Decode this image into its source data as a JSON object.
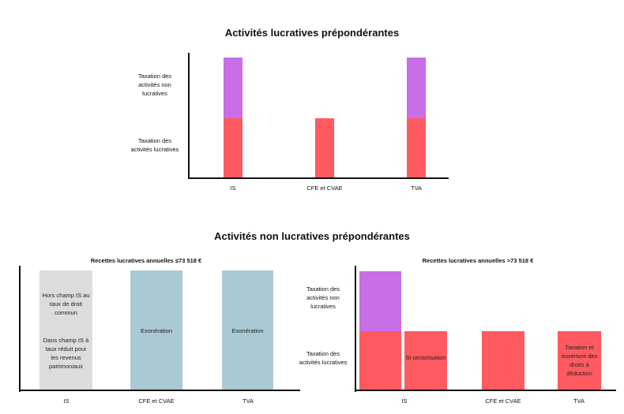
{
  "chart_data": [
    {
      "type": "bar",
      "stacked": true,
      "title": "Activités lucratives prépondérantes",
      "y_categories": [
        "Taxation des activités lucratives",
        "Taxation des activités non lucratives"
      ],
      "categories": [
        "IS",
        "CFE et CVAE",
        "TVA"
      ],
      "series": [
        {
          "name": "Taxation des activités lucratives",
          "color": "#ff5a5f",
          "values": [
            1,
            1,
            1
          ]
        },
        {
          "name": "Taxation des activités non lucratives",
          "color": "#c86ee6",
          "values": [
            1,
            0,
            1
          ]
        }
      ]
    },
    {
      "type": "bar",
      "title": "Activités non lucratives prépondérantes",
      "subtitle": "Recettes lucratives annuelles ≤73 518 €",
      "categories": [
        "IS",
        "CFE et CVAE",
        "TVA"
      ],
      "bars": [
        {
          "category": "IS",
          "color": "#dcdcdc",
          "label_top": "Hors champ IS au taux de droit commun",
          "label_bottom": "Dans champ IS à taux réduit pour les revenus patrimoniaux"
        },
        {
          "category": "CFE et CVAE",
          "color": "#a9c9d4",
          "label": "Exonération"
        },
        {
          "category": "TVA",
          "color": "#a9c9d4",
          "label": "Exonération"
        }
      ]
    },
    {
      "type": "bar",
      "stacked": true,
      "subtitle": "Recettes lucratives annuelles >73 518 €",
      "y_categories": [
        "Taxation des activités lucratives",
        "Taxation des activités non lucratives"
      ],
      "categories": [
        "IS",
        "CFE et CVAE",
        "TVA"
      ],
      "bars": [
        {
          "category": "IS",
          "segments": [
            {
              "color": "#ff5a5f",
              "value": 1
            },
            {
              "color": "#c86ee6",
              "value": 1
            }
          ]
        },
        {
          "category": "IS",
          "segments": [
            {
              "color": "#ff5a5f",
              "value": 1
            }
          ],
          "label": "Si sectorisation"
        },
        {
          "category": "CFE et CVAE",
          "segments": [
            {
              "color": "#ff5a5f",
              "value": 1
            }
          ]
        },
        {
          "category": "TVA",
          "segments": [
            {
              "color": "#ff5a5f",
              "value": 1
            }
          ],
          "label": "Taxation et ouverture des droits à déduction"
        }
      ]
    }
  ],
  "chart1": {
    "title": "Activités lucratives prépondérantes",
    "ylabel_top": "Taxation des activités non lucratives",
    "ylabel_bottom": "Taxation des activités lucratives",
    "ticks": [
      "IS",
      "CFE et CVAE",
      "TVA"
    ]
  },
  "section2": {
    "title": "Activités non lucratives prépondérantes"
  },
  "chart2": {
    "subtitle": "Recettes lucratives annuelles ≤73 518 €",
    "ticks": [
      "IS",
      "CFE et CVAE",
      "TVA"
    ],
    "is_label_top": "Hors champ IS au taux de droit commun",
    "is_label_bottom": "Dans champ IS à taux réduit pour les revenus patrimoniaux",
    "cfe_label": "Exonération",
    "tva_label": "Exonération"
  },
  "chart3": {
    "subtitle": "Recettes lucratives annuelles >73 518 €",
    "ylabel_top": "Taxation des activités non lucratives",
    "ylabel_bottom": "Taxation des activités lucratives",
    "ticks": [
      "IS",
      "CFE et CVAE",
      "TVA"
    ],
    "sector_label": "Si sectorisation",
    "tva_label": "Taxation et ouverture des droits à déduction"
  }
}
